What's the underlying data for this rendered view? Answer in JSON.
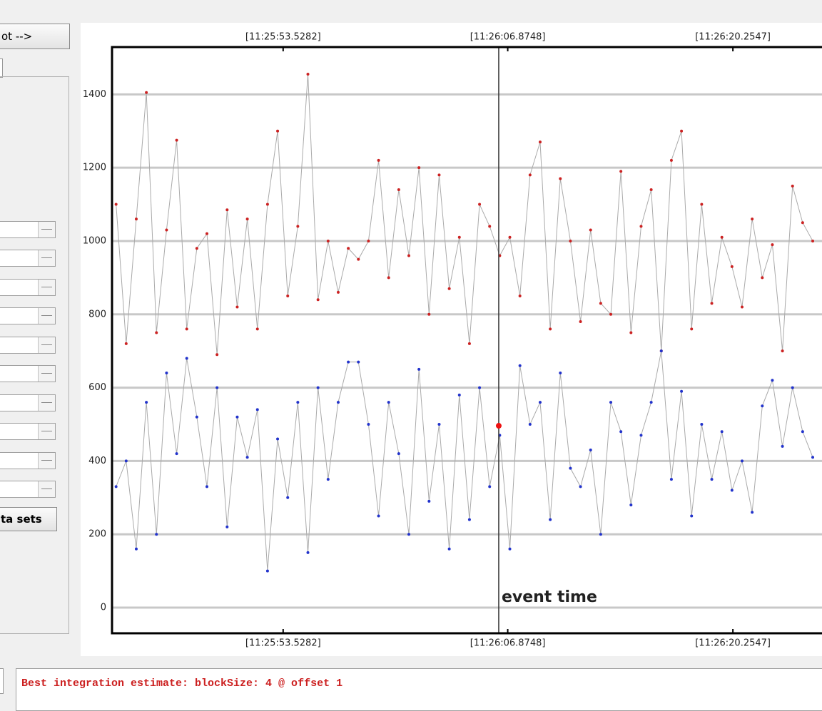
{
  "controls": {
    "top_button": "ot -->",
    "bottom_button": "ta sets"
  },
  "status": {
    "message": "Best integration estimate: blockSize: 4 @ offset 1"
  },
  "chart_data": {
    "type": "line",
    "x": [
      41143.6,
      41144.2,
      41144.8,
      41145.4,
      41146.0,
      41146.6,
      41147.2,
      41147.8,
      41148.4,
      41149.0,
      41149.6,
      41150.2,
      41150.8,
      41151.4,
      41152.0,
      41152.6,
      41153.2,
      41153.8,
      41154.4,
      41155.0,
      41155.6,
      41156.2,
      41156.8,
      41157.4,
      41158.0,
      41158.6,
      41159.2,
      41159.8,
      41160.4,
      41161.0,
      41161.6,
      41162.2,
      41162.8,
      41163.4,
      41164.0,
      41164.6,
      41165.2,
      41165.8,
      41166.4,
      41167.0,
      41167.6,
      41168.2,
      41168.8,
      41169.4,
      41170.0,
      41170.6,
      41171.2,
      41171.8,
      41172.4,
      41173.0,
      41173.6,
      41174.2,
      41174.8,
      41175.4,
      41176.0,
      41176.6,
      41177.2,
      41177.8,
      41178.4,
      41179.0,
      41179.6,
      41180.2,
      41180.8,
      41181.4,
      41182.0,
      41182.6,
      41183.2,
      41183.8,
      41184.4,
      41185.0
    ],
    "series": [
      {
        "color": "#cc2222",
        "values": [
          1100,
          720,
          1060,
          1405,
          750,
          1030,
          1275,
          760,
          980,
          1020,
          690,
          1085,
          820,
          1060,
          760,
          1100,
          1300,
          850,
          1040,
          1455,
          840,
          1000,
          860,
          980,
          950,
          1000,
          1220,
          900,
          1140,
          960,
          1200,
          800,
          1180,
          870,
          1010,
          720,
          1100,
          1040,
          960,
          1010,
          850,
          1180,
          1270,
          760,
          1170,
          1000,
          780,
          1030,
          830,
          800,
          1190,
          750,
          1040,
          1140,
          700,
          1220,
          1300,
          760,
          1100,
          830,
          1010,
          930,
          820,
          1060,
          900,
          990,
          700,
          1150,
          1050,
          1000
        ]
      },
      {
        "color": "#2233cc",
        "values": [
          330,
          400,
          160,
          560,
          200,
          640,
          420,
          680,
          520,
          330,
          600,
          220,
          520,
          410,
          540,
          100,
          460,
          300,
          560,
          150,
          600,
          350,
          560,
          670,
          670,
          500,
          250,
          560,
          420,
          200,
          650,
          290,
          500,
          160,
          580,
          240,
          600,
          330,
          470,
          160,
          660,
          500,
          560,
          240,
          640,
          380,
          330,
          430,
          200,
          560,
          480,
          280,
          470,
          560,
          700,
          350,
          590,
          250,
          500,
          350,
          480,
          320,
          400,
          260,
          550,
          620,
          440,
          600,
          480,
          410
        ]
      }
    ],
    "line_color": "#aaaaaa",
    "event": {
      "x": 41166.34,
      "value": 496,
      "label": "event time",
      "color": "#ee1111"
    },
    "xlim": [
      41143.36,
      41185.55
    ],
    "xticks": [
      {
        "value": 41153.5282,
        "label": "[11:25:53.5282]"
      },
      {
        "value": 41166.8748,
        "label": "[11:26:06.8748]"
      },
      {
        "value": 41180.2547,
        "label": "[11:26:20.2547]"
      }
    ],
    "ylim": [
      -70,
      1529
    ],
    "yticks": [
      0,
      200,
      400,
      600,
      800,
      1000,
      1200,
      1400
    ],
    "grid": true
  }
}
